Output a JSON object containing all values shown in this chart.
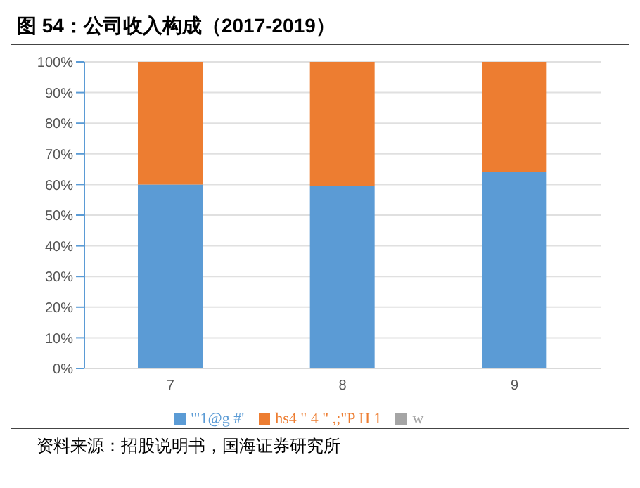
{
  "chart_data": {
    "type": "bar",
    "title": "图 54：公司收入构成（2017-2019）",
    "stacked": true,
    "categories": [
      "7",
      "8",
      "9"
    ],
    "series": [
      {
        "name": "'\"1@g #'",
        "color": "#5b9bd5",
        "values": [
          60,
          59.5,
          64
        ]
      },
      {
        "name": "hs4 \" 4 \" ,;\"P H 1",
        "color": "#ed7d31",
        "values": [
          40,
          40.5,
          36
        ]
      },
      {
        "name": "w",
        "color": "#a5a5a5",
        "values": [
          null,
          null,
          null
        ]
      }
    ],
    "ylim": [
      0,
      100
    ],
    "yticks": [
      {
        "value": 0,
        "label": "0%"
      },
      {
        "value": 10,
        "label": "10%"
      },
      {
        "value": 20,
        "label": "20%"
      },
      {
        "value": 30,
        "label": "30%"
      },
      {
        "value": 40,
        "label": "40%"
      },
      {
        "value": 50,
        "label": "50%"
      },
      {
        "value": 60,
        "label": "60%"
      },
      {
        "value": 70,
        "label": "70%"
      },
      {
        "value": 80,
        "label": "80%"
      },
      {
        "value": 90,
        "label": "90%"
      },
      {
        "value": 100,
        "label": "100%"
      }
    ],
    "grid": "y",
    "legend": "bottom",
    "annotations": [
      "资料来源：招股说明书，国海证券研究所"
    ]
  }
}
